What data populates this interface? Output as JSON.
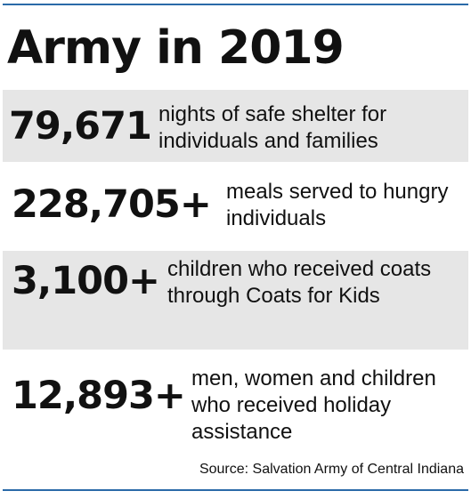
{
  "colors": {
    "rule": "#2a6aa8",
    "shade": "#e6e6e6",
    "text": "#111111"
  },
  "title": "Army in 2019",
  "stats": [
    {
      "number": "79,671",
      "description": "nights of safe shelter for individuals and families"
    },
    {
      "number": "228,705+",
      "description": "meals served to hungry individuals"
    },
    {
      "number": "3,100+",
      "description": "children who received coats through Coats for Kids"
    },
    {
      "number": "12,893+",
      "description": "men, women and children who received holiday assistance"
    }
  ],
  "source": "Source: Salvation Army of Central Indiana"
}
